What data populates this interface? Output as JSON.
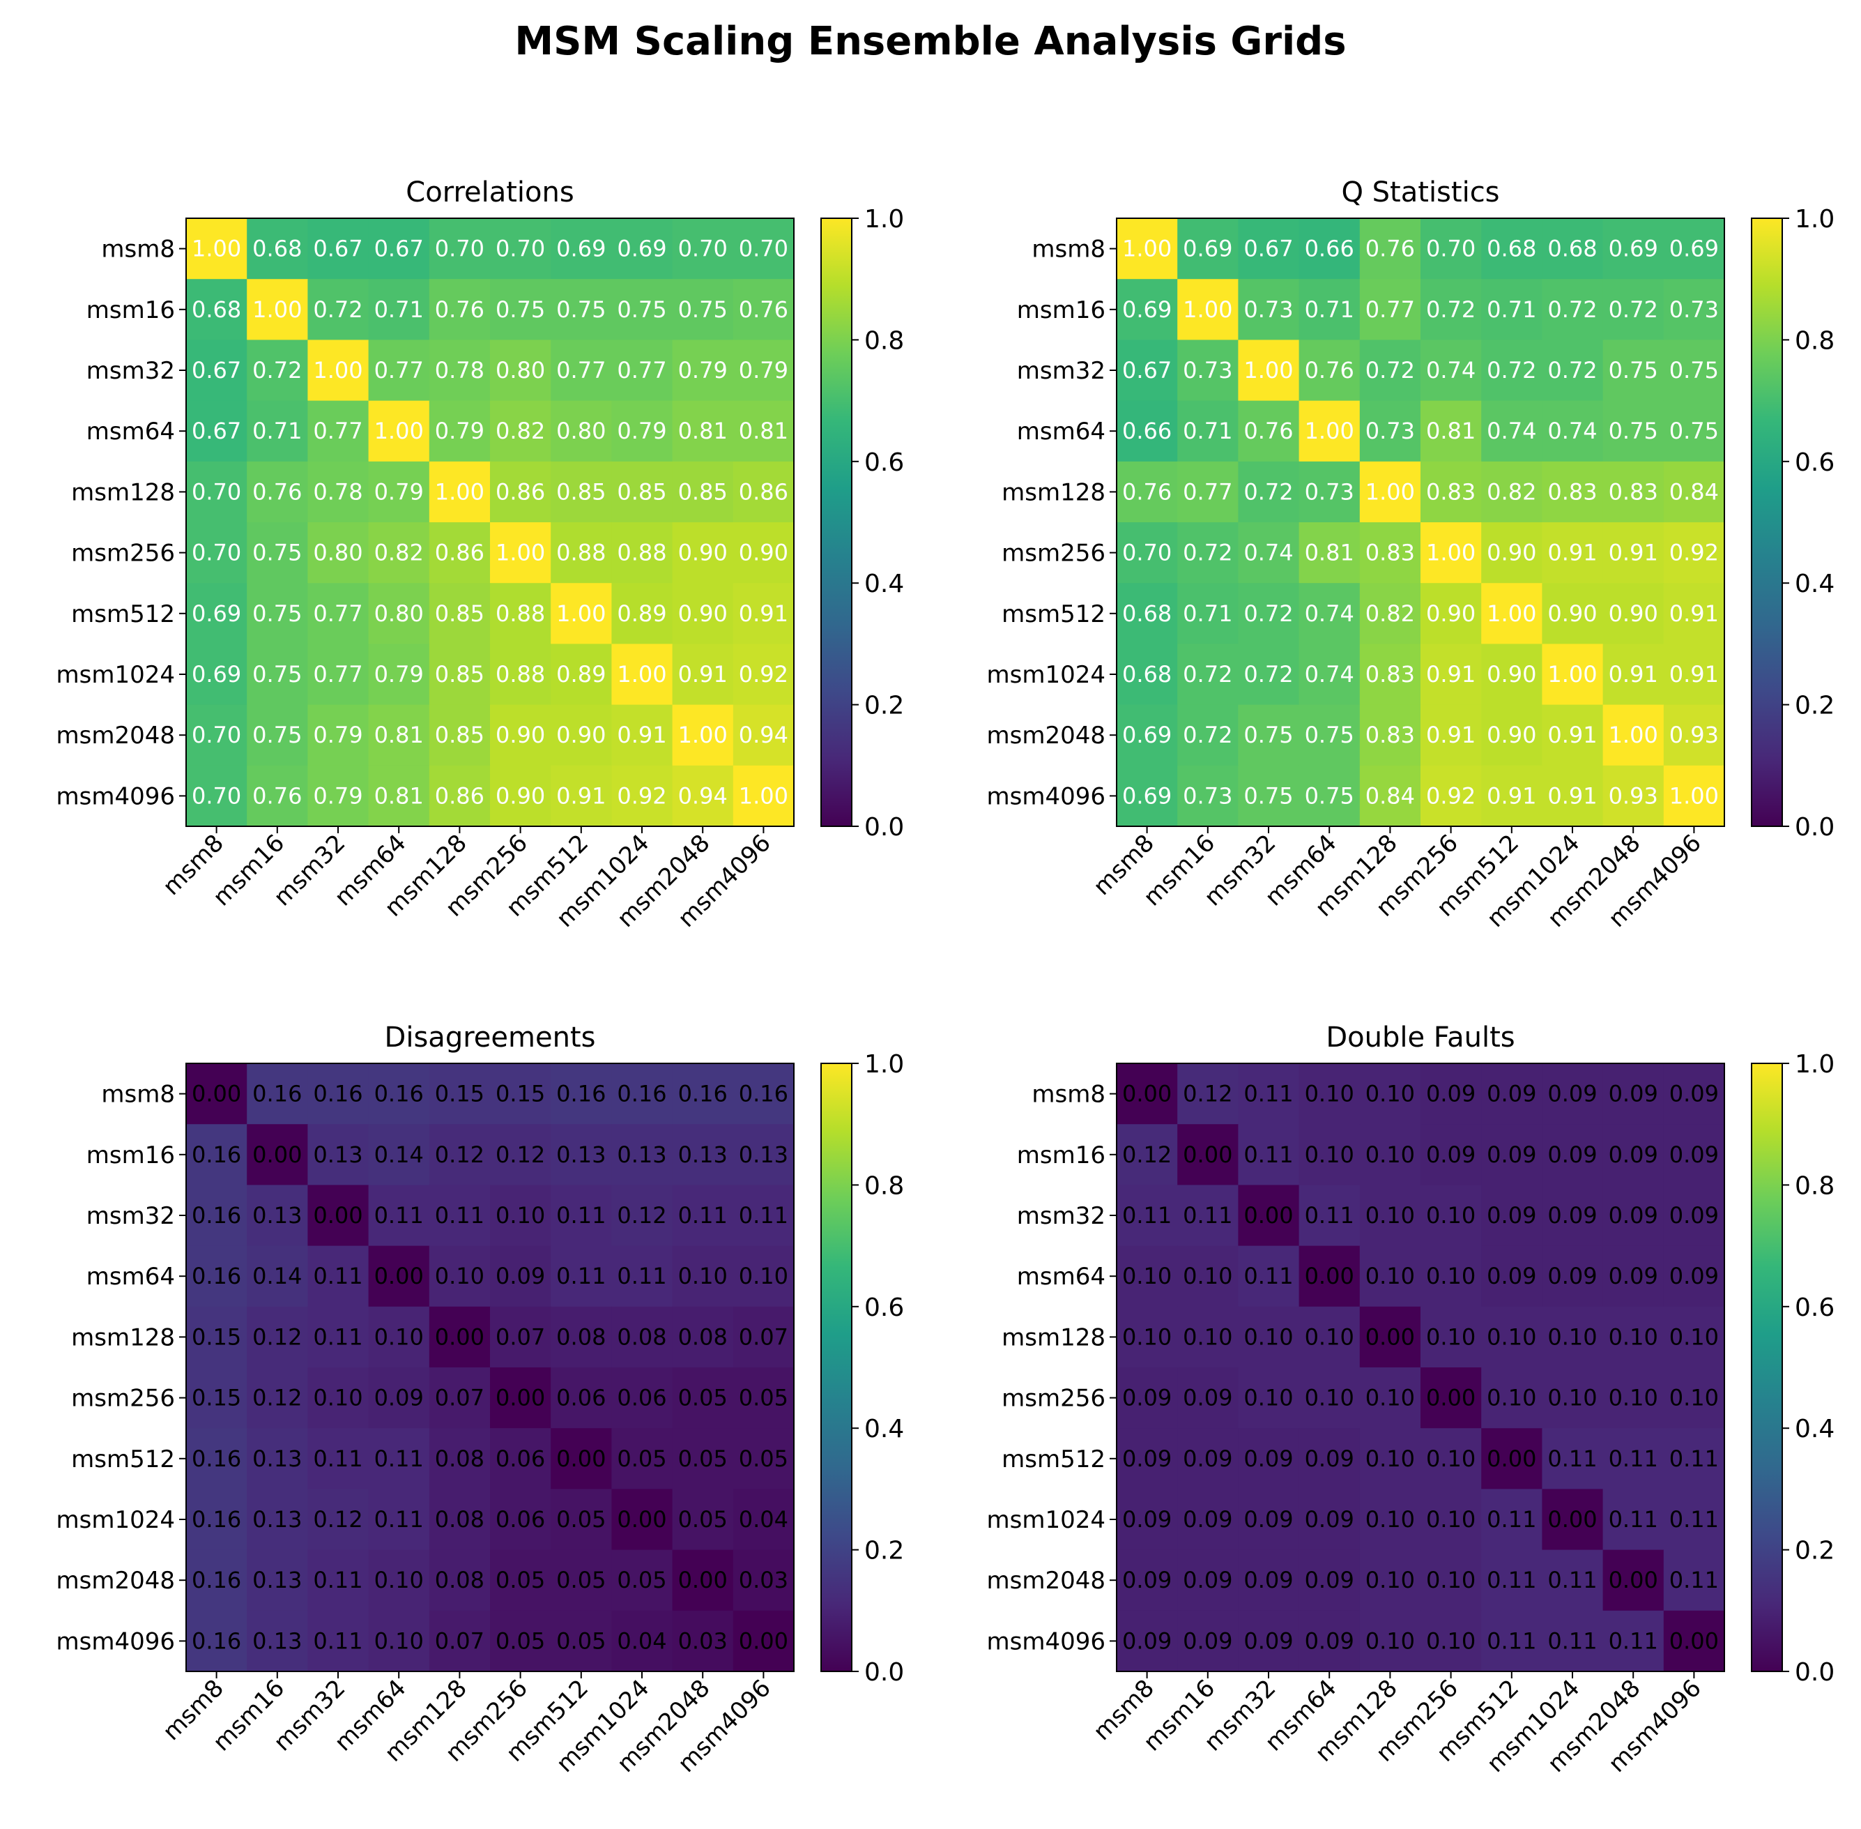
{
  "figure_title": "MSM Scaling Ensemble Analysis Grids",
  "colormap": "viridis",
  "colormap_stops": [
    "#440154",
    "#482878",
    "#3e4989",
    "#31688e",
    "#26828e",
    "#1f9e89",
    "#35b779",
    "#6ece58",
    "#b5de2b",
    "#fde725"
  ],
  "chart_data": [
    {
      "type": "heatmap",
      "title": "Correlations",
      "labels": [
        "msm8",
        "msm16",
        "msm32",
        "msm64",
        "msm128",
        "msm256",
        "msm512",
        "msm1024",
        "msm2048",
        "msm4096"
      ],
      "colorbar_range": [
        0,
        1
      ],
      "colorbar_ticks": [
        "0.0",
        "0.2",
        "0.4",
        "0.6",
        "0.8",
        "1.0"
      ],
      "values": [
        [
          1.0,
          0.68,
          0.67,
          0.67,
          0.7,
          0.7,
          0.69,
          0.69,
          0.7,
          0.7
        ],
        [
          0.68,
          1.0,
          0.72,
          0.71,
          0.76,
          0.75,
          0.75,
          0.75,
          0.75,
          0.76
        ],
        [
          0.67,
          0.72,
          1.0,
          0.77,
          0.78,
          0.8,
          0.77,
          0.77,
          0.79,
          0.79
        ],
        [
          0.67,
          0.71,
          0.77,
          1.0,
          0.79,
          0.82,
          0.8,
          0.79,
          0.81,
          0.81
        ],
        [
          0.7,
          0.76,
          0.78,
          0.79,
          1.0,
          0.86,
          0.85,
          0.85,
          0.85,
          0.86
        ],
        [
          0.7,
          0.75,
          0.8,
          0.82,
          0.86,
          1.0,
          0.88,
          0.88,
          0.9,
          0.9
        ],
        [
          0.69,
          0.75,
          0.77,
          0.8,
          0.85,
          0.88,
          1.0,
          0.89,
          0.9,
          0.91
        ],
        [
          0.69,
          0.75,
          0.77,
          0.79,
          0.85,
          0.88,
          0.89,
          1.0,
          0.91,
          0.92
        ],
        [
          0.7,
          0.75,
          0.79,
          0.81,
          0.85,
          0.9,
          0.9,
          0.91,
          1.0,
          0.94
        ],
        [
          0.7,
          0.76,
          0.79,
          0.81,
          0.86,
          0.9,
          0.91,
          0.92,
          0.94,
          1.0
        ]
      ]
    },
    {
      "type": "heatmap",
      "title": "Q Statistics",
      "labels": [
        "msm8",
        "msm16",
        "msm32",
        "msm64",
        "msm128",
        "msm256",
        "msm512",
        "msm1024",
        "msm2048",
        "msm4096"
      ],
      "colorbar_range": [
        0,
        1
      ],
      "colorbar_ticks": [
        "0.0",
        "0.2",
        "0.4",
        "0.6",
        "0.8",
        "1.0"
      ],
      "values": [
        [
          1.0,
          0.69,
          0.67,
          0.66,
          0.76,
          0.7,
          0.68,
          0.68,
          0.69,
          0.69
        ],
        [
          0.69,
          1.0,
          0.73,
          0.71,
          0.77,
          0.72,
          0.71,
          0.72,
          0.72,
          0.73
        ],
        [
          0.67,
          0.73,
          1.0,
          0.76,
          0.72,
          0.74,
          0.72,
          0.72,
          0.75,
          0.75
        ],
        [
          0.66,
          0.71,
          0.76,
          1.0,
          0.73,
          0.81,
          0.74,
          0.74,
          0.75,
          0.75
        ],
        [
          0.76,
          0.77,
          0.72,
          0.73,
          1.0,
          0.83,
          0.82,
          0.83,
          0.83,
          0.84
        ],
        [
          0.7,
          0.72,
          0.74,
          0.81,
          0.83,
          1.0,
          0.9,
          0.91,
          0.91,
          0.92
        ],
        [
          0.68,
          0.71,
          0.72,
          0.74,
          0.82,
          0.9,
          1.0,
          0.9,
          0.9,
          0.91
        ],
        [
          0.68,
          0.72,
          0.72,
          0.74,
          0.83,
          0.91,
          0.9,
          1.0,
          0.91,
          0.91
        ],
        [
          0.69,
          0.72,
          0.75,
          0.75,
          0.83,
          0.91,
          0.9,
          0.91,
          1.0,
          0.93
        ],
        [
          0.69,
          0.73,
          0.75,
          0.75,
          0.84,
          0.92,
          0.91,
          0.91,
          0.93,
          1.0
        ]
      ]
    },
    {
      "type": "heatmap",
      "title": "Disagreements",
      "labels": [
        "msm8",
        "msm16",
        "msm32",
        "msm64",
        "msm128",
        "msm256",
        "msm512",
        "msm1024",
        "msm2048",
        "msm4096"
      ],
      "colorbar_range": [
        0,
        1
      ],
      "colorbar_ticks": [
        "0.0",
        "0.2",
        "0.4",
        "0.6",
        "0.8",
        "1.0"
      ],
      "values": [
        [
          0.0,
          0.16,
          0.16,
          0.16,
          0.15,
          0.15,
          0.16,
          0.16,
          0.16,
          0.16
        ],
        [
          0.16,
          0.0,
          0.13,
          0.14,
          0.12,
          0.12,
          0.13,
          0.13,
          0.13,
          0.13
        ],
        [
          0.16,
          0.13,
          0.0,
          0.11,
          0.11,
          0.1,
          0.11,
          0.12,
          0.11,
          0.11
        ],
        [
          0.16,
          0.14,
          0.11,
          0.0,
          0.1,
          0.09,
          0.11,
          0.11,
          0.1,
          0.1
        ],
        [
          0.15,
          0.12,
          0.11,
          0.1,
          0.0,
          0.07,
          0.08,
          0.08,
          0.08,
          0.07
        ],
        [
          0.15,
          0.12,
          0.1,
          0.09,
          0.07,
          0.0,
          0.06,
          0.06,
          0.05,
          0.05
        ],
        [
          0.16,
          0.13,
          0.11,
          0.11,
          0.08,
          0.06,
          0.0,
          0.05,
          0.05,
          0.05
        ],
        [
          0.16,
          0.13,
          0.12,
          0.11,
          0.08,
          0.06,
          0.05,
          0.0,
          0.05,
          0.04
        ],
        [
          0.16,
          0.13,
          0.11,
          0.1,
          0.08,
          0.05,
          0.05,
          0.05,
          0.0,
          0.03
        ],
        [
          0.16,
          0.13,
          0.11,
          0.1,
          0.07,
          0.05,
          0.05,
          0.04,
          0.03,
          0.0
        ]
      ]
    },
    {
      "type": "heatmap",
      "title": "Double Faults",
      "labels": [
        "msm8",
        "msm16",
        "msm32",
        "msm64",
        "msm128",
        "msm256",
        "msm512",
        "msm1024",
        "msm2048",
        "msm4096"
      ],
      "colorbar_range": [
        0,
        1
      ],
      "colorbar_ticks": [
        "0.0",
        "0.2",
        "0.4",
        "0.6",
        "0.8",
        "1.0"
      ],
      "values": [
        [
          0.0,
          0.12,
          0.11,
          0.1,
          0.1,
          0.09,
          0.09,
          0.09,
          0.09,
          0.09
        ],
        [
          0.12,
          0.0,
          0.11,
          0.1,
          0.1,
          0.09,
          0.09,
          0.09,
          0.09,
          0.09
        ],
        [
          0.11,
          0.11,
          0.0,
          0.11,
          0.1,
          0.1,
          0.09,
          0.09,
          0.09,
          0.09
        ],
        [
          0.1,
          0.1,
          0.11,
          0.0,
          0.1,
          0.1,
          0.09,
          0.09,
          0.09,
          0.09
        ],
        [
          0.1,
          0.1,
          0.1,
          0.1,
          0.0,
          0.1,
          0.1,
          0.1,
          0.1,
          0.1
        ],
        [
          0.09,
          0.09,
          0.1,
          0.1,
          0.1,
          0.0,
          0.1,
          0.1,
          0.1,
          0.1
        ],
        [
          0.09,
          0.09,
          0.09,
          0.09,
          0.1,
          0.1,
          0.0,
          0.11,
          0.11,
          0.11
        ],
        [
          0.09,
          0.09,
          0.09,
          0.09,
          0.1,
          0.1,
          0.11,
          0.0,
          0.11,
          0.11
        ],
        [
          0.09,
          0.09,
          0.09,
          0.09,
          0.1,
          0.1,
          0.11,
          0.11,
          0.0,
          0.11
        ],
        [
          0.09,
          0.09,
          0.09,
          0.09,
          0.1,
          0.1,
          0.11,
          0.11,
          0.11,
          0.0
        ]
      ]
    }
  ]
}
